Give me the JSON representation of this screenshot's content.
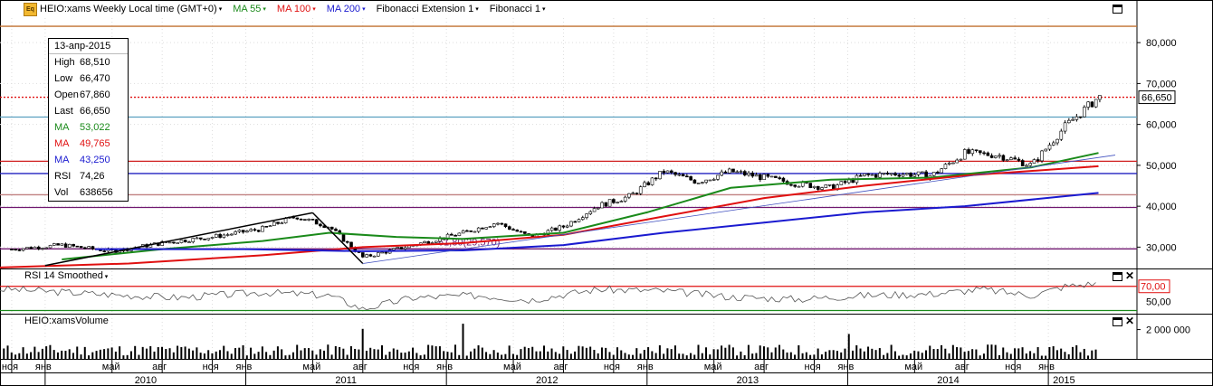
{
  "header": {
    "logo": "Eq",
    "title": "HEIO:xams Weekly Local time (GMT+0)",
    "indicators": [
      {
        "label": "MA 55",
        "color": "#1a8a1a"
      },
      {
        "label": "MA 100",
        "color": "#e01010"
      },
      {
        "label": "MA 200",
        "color": "#1a1ad0"
      },
      {
        "label": "Fibonacci Extension 1",
        "color": "#000000"
      },
      {
        "label": "Fibonacci 1",
        "color": "#000000"
      }
    ]
  },
  "info": {
    "date": "13-апр-2015",
    "rows": [
      {
        "k": "High",
        "v": "68,510",
        "color": "#000000"
      },
      {
        "k": "Low",
        "v": "66,470",
        "color": "#000000"
      },
      {
        "k": "Open",
        "v": "67,860",
        "color": "#000000"
      },
      {
        "k": "Last",
        "v": "66,650",
        "color": "#000000"
      },
      {
        "k": "MA",
        "v": "53,022",
        "color": "#1a8a1a"
      },
      {
        "k": "MA",
        "v": "49,765",
        "color": "#e01010"
      },
      {
        "k": "MA",
        "v": "43,250",
        "color": "#1a1ad0"
      },
      {
        "k": "RSI",
        "v": "74,26",
        "color": "#000000"
      },
      {
        "k": "Vol",
        "v": "638656",
        "color": "#000000"
      }
    ]
  },
  "chart_data": {
    "type": "candlestick",
    "instrument": "HEIO:xams",
    "interval": "Weekly",
    "ylim": [
      25000,
      86000
    ],
    "y_ticks": [
      "30,000",
      "40,000",
      "50,000",
      "60,000",
      "70,000",
      "80,000"
    ],
    "last_price_label": "66,650",
    "last_price": 66650,
    "x_months": [
      "ноя",
      "янв",
      "май",
      "авг",
      "ноя",
      "янв",
      "май",
      "авг",
      "ноя",
      "янв",
      "май",
      "авг",
      "ноя",
      "янв",
      "май",
      "авг",
      "ноя",
      "янв",
      "май",
      "авг",
      "ноя",
      "янв"
    ],
    "x_years": [
      "2010",
      "2011",
      "2012",
      "2013",
      "2014",
      "2015"
    ],
    "price_path": {
      "dates": [
        "2009-11",
        "2010-02",
        "2010-05",
        "2010-08",
        "2010-11",
        "2011-02",
        "2011-04",
        "2011-06",
        "2011-08",
        "2011-10",
        "2011-12",
        "2012-02",
        "2012-04",
        "2012-06",
        "2012-08",
        "2012-10",
        "2012-12",
        "2013-02",
        "2013-04",
        "2013-06",
        "2013-08",
        "2013-10",
        "2013-12",
        "2014-02",
        "2014-04",
        "2014-06",
        "2014-08",
        "2014-10",
        "2014-12",
        "2015-02",
        "2015-04"
      ],
      "close": [
        29500,
        30500,
        29000,
        31000,
        32500,
        34500,
        37500,
        35000,
        27500,
        29500,
        31500,
        33500,
        36000,
        32500,
        35000,
        40000,
        42500,
        48500,
        46000,
        48500,
        47000,
        45500,
        44500,
        47500,
        48000,
        47500,
        53000,
        52500,
        50000,
        59500,
        66650
      ]
    },
    "horizontal_levels": [
      {
        "value": 84000,
        "color": "#c07030"
      },
      {
        "value": 66650,
        "color": "#e01010",
        "style": "dotted"
      },
      {
        "value": 61800,
        "color": "#5aa0c0"
      },
      {
        "value": 51000,
        "color": "#d02020"
      },
      {
        "value": 48000,
        "color": "#2020c0"
      },
      {
        "value": 42800,
        "color": "#c08080"
      },
      {
        "value": 39700,
        "color": "#701870"
      },
      {
        "value": 29570,
        "color": "#701870"
      }
    ],
    "fib_annotation": "61,80(29,570)",
    "ma": [
      {
        "name": "MA 55",
        "color": "#1a8a1a",
        "dates": [
          "2010-02",
          "2010-08",
          "2011-02",
          "2011-06",
          "2011-10",
          "2012-02",
          "2012-08",
          "2013-01",
          "2013-06",
          "2013-12",
          "2014-06",
          "2014-12",
          "2015-04"
        ],
        "values": [
          27000,
          29500,
          31500,
          33500,
          32500,
          32000,
          33500,
          38500,
          44500,
          46500,
          47000,
          49500,
          53022
        ]
      },
      {
        "name": "MA 100",
        "color": "#e01010",
        "dates": [
          "2009-10",
          "2010-06",
          "2011-02",
          "2011-08",
          "2012-02",
          "2012-08",
          "2013-02",
          "2013-08",
          "2014-02",
          "2014-08",
          "2015-04"
        ],
        "values": [
          25000,
          26000,
          28000,
          30000,
          31000,
          33000,
          37500,
          42000,
          45000,
          47500,
          49765
        ]
      },
      {
        "name": "MA 200",
        "color": "#1a1ad0",
        "dates": [
          "2010-04",
          "2011-01",
          "2011-08",
          "2012-02",
          "2012-08",
          "2013-02",
          "2013-08",
          "2014-02",
          "2014-08",
          "2015-04"
        ],
        "values": [
          29500,
          29500,
          29000,
          29200,
          30500,
          33500,
          36000,
          38500,
          40000,
          43250
        ]
      }
    ],
    "fib_extension_lines": [
      {
        "dates": [
          "2010-01",
          "2011-05"
        ],
        "values": [
          25500,
          38400
        ]
      },
      {
        "dates": [
          "2011-05",
          "2011-08"
        ],
        "values": [
          38400,
          26000
        ]
      },
      {
        "dates": [
          "2011-08",
          "2015-05"
        ],
        "values": [
          26000,
          52500
        ]
      }
    ],
    "rsi": {
      "title": "RSI 14 Smoothed",
      "ylim": [
        35,
        90
      ],
      "level": 70,
      "level_label": "70,00",
      "tick_label": "50,00",
      "dates": [
        "2009-11",
        "2010-04",
        "2010-09",
        "2011-02",
        "2011-06",
        "2011-08",
        "2011-11",
        "2012-03",
        "2012-06",
        "2012-10",
        "2013-02",
        "2013-06",
        "2013-10",
        "2014-02",
        "2014-06",
        "2014-09",
        "2014-12",
        "2015-02",
        "2015-04"
      ],
      "values": [
        66,
        60,
        55,
        62,
        58,
        40,
        55,
        58,
        52,
        66,
        64,
        56,
        53,
        58,
        60,
        66,
        58,
        70,
        74
      ]
    },
    "volume": {
      "title": "HEIO:xamsVolume",
      "tick_label": "2 000 000",
      "ylim": [
        0,
        2900000
      ],
      "typical": 700000,
      "spikes": [
        {
          "date": "2011-08",
          "value": 2050000
        },
        {
          "date": "2012-02",
          "value": 2400000
        },
        {
          "date": "2014-01",
          "value": 1700000
        }
      ]
    }
  }
}
